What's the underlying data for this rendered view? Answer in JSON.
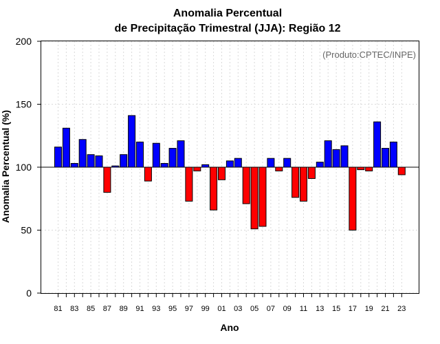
{
  "chart_data": {
    "type": "bar",
    "title_line1": "Anomalia Percentual",
    "title_line2": "de Precipitação Trimestral (JJA): Região 12",
    "xlabel": "Ano",
    "ylabel": "Anomalia Percentual (%)",
    "credit": "(Produto:CPTEC/INPE)",
    "baseline": 100,
    "ylim": [
      0,
      200
    ],
    "yticks": [
      0,
      50,
      100,
      150,
      200
    ],
    "colors": {
      "above": "#0000ff",
      "below": "#ff0000",
      "stroke": "#000000"
    },
    "categories": [
      "81",
      "82",
      "83",
      "84",
      "85",
      "86",
      "87",
      "88",
      "89",
      "90",
      "91",
      "92",
      "93",
      "94",
      "95",
      "96",
      "97",
      "98",
      "99",
      "00",
      "01",
      "02",
      "03",
      "04",
      "05",
      "06",
      "07",
      "08",
      "09",
      "10",
      "11",
      "12",
      "13",
      "14",
      "15",
      "16",
      "17",
      "18",
      "19",
      "20",
      "21",
      "22",
      "23"
    ],
    "xtick_labels": [
      "81",
      "83",
      "85",
      "87",
      "89",
      "91",
      "93",
      "95",
      "97",
      "99",
      "01",
      "03",
      "05",
      "07",
      "09",
      "11",
      "13",
      "15",
      "17",
      "19",
      "21",
      "23"
    ],
    "values": [
      116,
      131,
      103,
      122,
      110,
      109,
      80,
      101,
      110,
      141,
      120,
      89,
      119,
      103,
      115,
      121,
      73,
      97,
      102,
      66,
      90,
      105,
      107,
      71,
      51,
      53,
      107,
      97,
      107,
      76,
      73,
      91,
      104,
      121,
      114,
      117,
      50,
      98,
      97,
      136,
      115,
      120,
      94
    ]
  }
}
